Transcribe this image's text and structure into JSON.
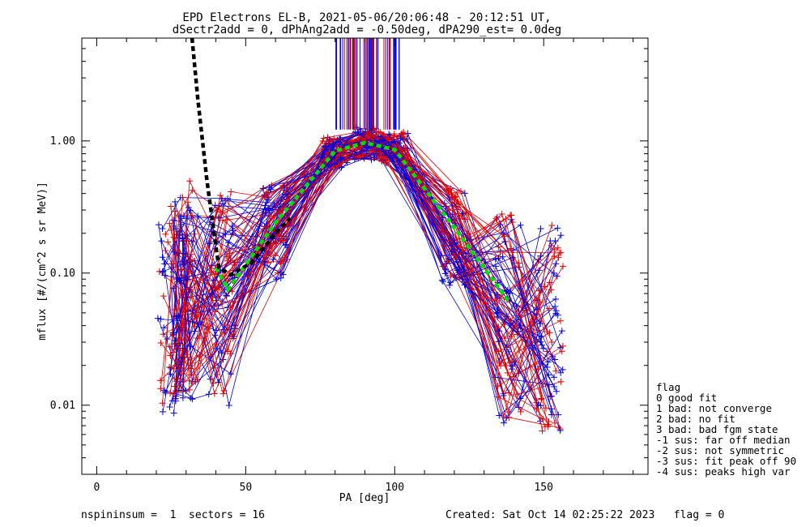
{
  "chart_data": {
    "type": "line",
    "title_line1": "EPD Electrons EL-B, 2021-05-06/20:06:48 - 20:12:51 UT,",
    "title_line2": "dSectr2add = 0, dPhAng2add = -0.50deg, dPA290_est=   0.0deg",
    "xlabel": "PA [deg]",
    "ylabel": "mflux [#/(cm^2 s sr MeV)]",
    "xlim": [
      -5,
      185
    ],
    "ylim": [
      0.003,
      6.0
    ],
    "yscale": "log",
    "x_ticks": [
      0,
      50,
      100,
      150
    ],
    "x_tick_labels": [
      "0",
      "50",
      "100",
      "150"
    ],
    "y_ticks": [
      0.01,
      0.1,
      1.0
    ],
    "y_tick_labels": [
      "0.01",
      "0.10",
      "1.00"
    ],
    "series": [
      {
        "name": "red traces",
        "color": "#e00000",
        "x": [
          25,
          30,
          42,
          60,
          80,
          91,
          100,
          120,
          138,
          152
        ],
        "y": [
          0.06,
          0.08,
          0.07,
          0.22,
          0.85,
          0.97,
          0.9,
          0.2,
          0.05,
          0.04
        ]
      },
      {
        "name": "blue traces",
        "color": "#0000e0",
        "x": [
          25,
          30,
          42,
          60,
          80,
          91,
          100,
          120,
          138,
          152
        ],
        "y": [
          0.05,
          0.07,
          0.06,
          0.2,
          0.82,
          0.95,
          0.88,
          0.18,
          0.045,
          0.035
        ]
      },
      {
        "name": "fit (green dashed)",
        "color": "#00e000",
        "x": [
          40,
          44,
          60,
          80,
          90,
          100,
          120,
          138
        ],
        "y": [
          0.11,
          0.075,
          0.24,
          0.84,
          0.97,
          0.86,
          0.22,
          0.062
        ]
      },
      {
        "name": "fit (black dashed)",
        "color": "#000000",
        "x": [
          32,
          34,
          37,
          41,
          45,
          52,
          60,
          65
        ],
        "y": [
          6.0,
          2.0,
          0.5,
          0.11,
          0.097,
          0.12,
          0.2,
          0.26
        ]
      }
    ],
    "legend": {
      "title": "flag",
      "placement": "right",
      "entries": [
        " 0 good fit",
        " 1 bad: not converge",
        " 2 bad: no fit",
        " 3 bad: bad fgm state",
        "-1 sus: far off median",
        "-2 sus: not symmetric",
        "-3 sus: fit peak off 90",
        "-4 sus: peaks high var"
      ]
    },
    "footer_left": "nspininsum =  1  sectors = 16",
    "footer_right": "Created: Sat Oct 14 02:25:22 2023   flag = 0"
  }
}
